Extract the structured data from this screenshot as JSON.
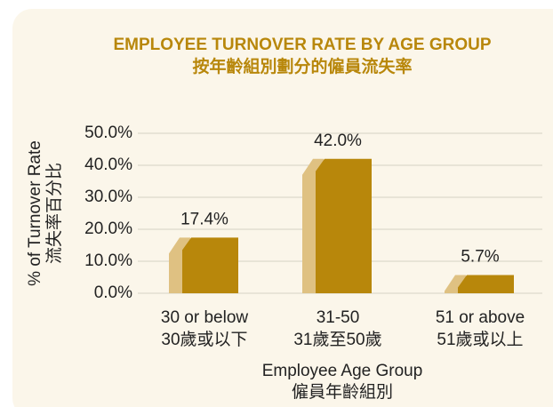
{
  "chart_data": {
    "type": "bar",
    "title": "EMPLOYEE TURNOVER RATE BY AGE GROUP",
    "subtitle": "按年齡組別劃分的僱員流失率",
    "ylabel": [
      "% of Turnover Rate",
      "流失率百分比"
    ],
    "xlabel": [
      "Employee Age Group",
      "僱員年齡組別"
    ],
    "categories": [
      [
        "30 or below",
        "30歲或以下"
      ],
      [
        "31-50",
        "31歲至50歲"
      ],
      [
        "51 or above",
        "51歲或以上"
      ]
    ],
    "values": [
      17.4,
      42.0,
      5.7
    ],
    "value_labels": [
      "17.4%",
      "42.0%",
      "5.7%"
    ],
    "color": "#b8870b",
    "ylim": [
      0,
      50
    ],
    "yticks": [
      {
        "value": 0,
        "label": "0.0%"
      },
      {
        "value": 10,
        "label": "10.0%"
      },
      {
        "value": 20,
        "label": "20.0%"
      },
      {
        "value": 30,
        "label": "30.0%"
      },
      {
        "value": 40,
        "label": "40.0%"
      },
      {
        "value": 50,
        "label": "50.0%"
      }
    ],
    "grid": true
  }
}
